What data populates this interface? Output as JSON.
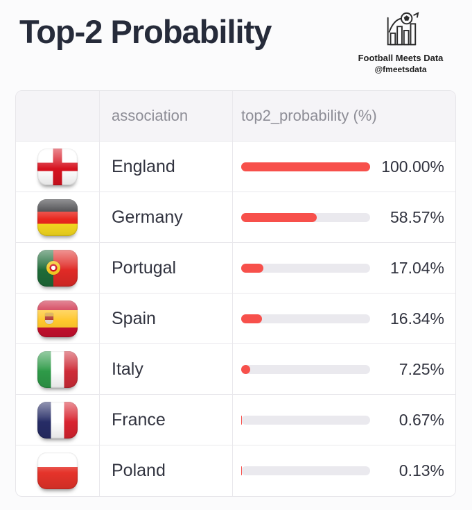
{
  "header": {
    "title": "Top-2 Probability",
    "brand": {
      "icon": "bar-chart-football-icon",
      "name": "Football Meets Data",
      "handle": "@fmeetsdata"
    }
  },
  "table": {
    "columns": [
      {
        "key": "flag",
        "label": ""
      },
      {
        "key": "association",
        "label": "association"
      },
      {
        "key": "probability",
        "label": "top2_probability (%)"
      }
    ],
    "rows": [
      {
        "flag": "england",
        "association": "England",
        "value": 100.0,
        "display": "100.00%"
      },
      {
        "flag": "germany",
        "association": "Germany",
        "value": 58.57,
        "display": "58.57%"
      },
      {
        "flag": "portugal",
        "association": "Portugal",
        "value": 17.04,
        "display": "17.04%"
      },
      {
        "flag": "spain",
        "association": "Spain",
        "value": 16.34,
        "display": "16.34%"
      },
      {
        "flag": "italy",
        "association": "Italy",
        "value": 7.25,
        "display": "7.25%"
      },
      {
        "flag": "france",
        "association": "France",
        "value": 0.67,
        "display": "0.67%"
      },
      {
        "flag": "poland",
        "association": "Poland",
        "value": 0.13,
        "display": "0.13%"
      }
    ],
    "colors": {
      "bar_fill": "#F7504B",
      "bar_track": "#EAE9EE",
      "header_bg": "#F5F4F7",
      "header_text": "#8D8D96",
      "body_text": "#31333F",
      "border": "#E9E8EC"
    }
  },
  "chart_data": {
    "type": "bar",
    "orientation": "horizontal",
    "title": "Top-2 Probability",
    "categories": [
      "England",
      "Germany",
      "Portugal",
      "Spain",
      "Italy",
      "France",
      "Poland"
    ],
    "values": [
      100.0,
      58.57,
      17.04,
      16.34,
      7.25,
      0.67,
      0.13
    ],
    "value_labels": [
      "100.00%",
      "58.57%",
      "17.04%",
      "16.34%",
      "7.25%",
      "0.67%",
      "0.13%"
    ],
    "xlabel": "top2_probability (%)",
    "ylabel": "association",
    "xlim": [
      0,
      100
    ],
    "bar_color": "#F7504B",
    "grid": false,
    "legend": false
  }
}
